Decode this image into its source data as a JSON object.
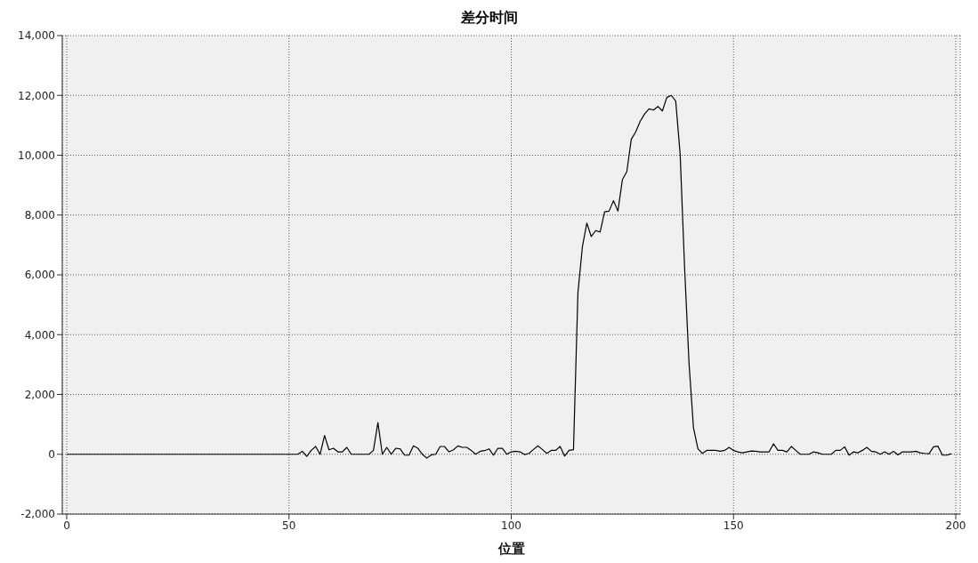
{
  "chart_data": {
    "type": "line",
    "title": "差分时间",
    "xlabel": "位置",
    "x": [
      0,
      1,
      2,
      3,
      4,
      5,
      6,
      7,
      8,
      9,
      10,
      11,
      12,
      13,
      14,
      15,
      16,
      17,
      18,
      19,
      20,
      21,
      22,
      23,
      24,
      25,
      26,
      27,
      28,
      29,
      30,
      31,
      32,
      33,
      34,
      35,
      36,
      37,
      38,
      39,
      40,
      41,
      42,
      43,
      44,
      45,
      46,
      47,
      48,
      49,
      50,
      51,
      52,
      53,
      54,
      55,
      56,
      57,
      58,
      59,
      60,
      61,
      62,
      63,
      64,
      65,
      66,
      67,
      68,
      69,
      70,
      71,
      72,
      73,
      74,
      75,
      76,
      77,
      78,
      79,
      80,
      81,
      82,
      83,
      84,
      85,
      86,
      87,
      88,
      89,
      90,
      91,
      92,
      93,
      94,
      95,
      96,
      97,
      98,
      99,
      100,
      101,
      102,
      103,
      104,
      105,
      106,
      107,
      108,
      109,
      110,
      111,
      112,
      113,
      114,
      115,
      116,
      117,
      118,
      119,
      120,
      121,
      122,
      123,
      124,
      125,
      126,
      127,
      128,
      129,
      130,
      131,
      132,
      133,
      134,
      135,
      136,
      137,
      138,
      139,
      140,
      141,
      142,
      143,
      144,
      145,
      146,
      147,
      148,
      149,
      150,
      151,
      152,
      153,
      154,
      155,
      156,
      157,
      158,
      159,
      160,
      161,
      162,
      163,
      164,
      165,
      166,
      167,
      168,
      169,
      170,
      171,
      172,
      173,
      174,
      175,
      176,
      177,
      178,
      179,
      180,
      181,
      182,
      183,
      184,
      185,
      186,
      187,
      188,
      189,
      190,
      191,
      192,
      193,
      194,
      195,
      196,
      197,
      198,
      199
    ],
    "series": [
      {
        "color": "#000000",
        "values": [
          0,
          0,
          0,
          0,
          0,
          0,
          0,
          0,
          0,
          0,
          0,
          0,
          0,
          0,
          0,
          0,
          0,
          0,
          0,
          0,
          0,
          0,
          0,
          0,
          0,
          0,
          0,
          0,
          0,
          0,
          0,
          0,
          0,
          0,
          0,
          0,
          0,
          0,
          0,
          0,
          0,
          0,
          0,
          0,
          0,
          0,
          0,
          0,
          0,
          0,
          0,
          0,
          0,
          100,
          -70,
          130,
          260,
          0,
          630,
          150,
          200,
          80,
          80,
          230,
          0,
          0,
          0,
          0,
          0,
          130,
          1060,
          0,
          230,
          0,
          200,
          180,
          -30,
          -30,
          280,
          200,
          0,
          -130,
          -20,
          0,
          260,
          260,
          80,
          150,
          280,
          230,
          230,
          130,
          0,
          100,
          120,
          180,
          -30,
          200,
          200,
          0,
          80,
          100,
          80,
          -10,
          30,
          160,
          280,
          160,
          30,
          130,
          130,
          260,
          -60,
          130,
          150,
          5400,
          6930,
          7730,
          7280,
          7480,
          7430,
          8110,
          8130,
          8480,
          8130,
          9180,
          9450,
          10530,
          10780,
          11130,
          11380,
          11550,
          11510,
          11630,
          11480,
          11930,
          12000,
          11810,
          10030,
          6230,
          3030,
          880,
          180,
          30,
          130,
          130,
          130,
          100,
          130,
          230,
          130,
          80,
          50,
          80,
          110,
          100,
          80,
          80,
          80,
          350,
          130,
          130,
          80,
          260,
          130,
          0,
          0,
          0,
          80,
          50,
          0,
          0,
          0,
          130,
          130,
          250,
          -30,
          80,
          50,
          130,
          230,
          100,
          80,
          0,
          80,
          0,
          100,
          -20,
          80,
          80,
          80,
          100,
          50,
          30,
          20,
          250,
          270,
          -30,
          -30,
          20
        ]
      }
    ],
    "xlim": [
      -1,
      201
    ],
    "xticks": [
      0,
      50,
      100,
      150,
      200
    ],
    "ylim": [
      -2000,
      14000
    ],
    "yticks": [
      {
        "value": -2000,
        "label": "-2,000"
      },
      0,
      {
        "value": 2000,
        "label": "2,000"
      },
      {
        "value": 4000,
        "label": "4,000"
      },
      {
        "value": 6000,
        "label": "6,000"
      },
      {
        "value": 8000,
        "label": "8,000"
      },
      {
        "value": 10000,
        "label": "10,000"
      },
      {
        "value": 12000,
        "label": "12,000"
      },
      {
        "value": 14000,
        "label": "14,000"
      }
    ],
    "grid": true,
    "marker": "none",
    "line_style": "solid"
  }
}
